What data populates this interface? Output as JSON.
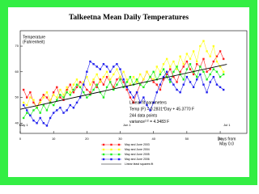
{
  "chart_data": {
    "type": "line",
    "title": "Talkeetna Mean Daily Temperatures",
    "y_label_lines": [
      "Temperature",
      "(Fahrenheit)"
    ],
    "x_label_lines": [
      "Days from",
      "May 0.0"
    ],
    "xlim": [
      0,
      68
    ],
    "xticks": [
      0,
      10,
      20,
      30,
      40,
      50,
      60
    ],
    "ylim": [
      36,
      76
    ],
    "yticks": [
      40,
      50,
      60,
      70
    ],
    "annotations": [
      {
        "text": "May 1",
        "x": 1
      },
      {
        "text": "Jun 1",
        "x": 32
      },
      {
        "text": "Jul 1",
        "x": 62
      }
    ],
    "fit_box": [
      "Linear fit parameters",
      "Temp (F) = 0.2831*Day + 45.3770 F",
      "244 data points"
    ],
    "variance_label": "variance",
    "variance_sup": "1/2",
    "variance_value": " = 4.3483 F",
    "x": [
      1,
      2,
      3,
      4,
      5,
      6,
      7,
      8,
      9,
      10,
      11,
      12,
      13,
      14,
      15,
      16,
      17,
      18,
      19,
      20,
      21,
      22,
      23,
      24,
      25,
      26,
      27,
      28,
      29,
      30,
      31,
      32,
      33,
      34,
      35,
      36,
      37,
      38,
      39,
      40,
      41,
      42,
      43,
      44,
      45,
      46,
      47,
      48,
      49,
      50,
      51,
      52,
      53,
      54,
      55,
      56,
      57,
      58,
      59,
      60,
      61
    ],
    "series": [
      {
        "name": "May and June 2003",
        "color": "#ff2020",
        "values": [
          53,
          50,
          52,
          48,
          46,
          49,
          51,
          50,
          48,
          52,
          54,
          50,
          49,
          53,
          55,
          52,
          54,
          56,
          55,
          53,
          52,
          56,
          54,
          57,
          55,
          58,
          56,
          54,
          57,
          58,
          56,
          53,
          50,
          48,
          52,
          55,
          57,
          60,
          58,
          56,
          55,
          53,
          57,
          59,
          61,
          58,
          56,
          60,
          62,
          64,
          61,
          59,
          63,
          62,
          65,
          60,
          61,
          64,
          66,
          68,
          65
        ]
      },
      {
        "name": "May and June 2004",
        "color": "#ffff20",
        "values": [
          48,
          47,
          50,
          49,
          46,
          48,
          50,
          52,
          49,
          51,
          50,
          53,
          51,
          54,
          52,
          55,
          57,
          54,
          56,
          58,
          55,
          57,
          59,
          56,
          58,
          60,
          57,
          59,
          61,
          58,
          60,
          57,
          55,
          58,
          56,
          59,
          57,
          60,
          58,
          57,
          62,
          60,
          63,
          65,
          62,
          64,
          61,
          66,
          63,
          67,
          65,
          68,
          64,
          70,
          72,
          68,
          66,
          70,
          64,
          62,
          60
        ]
      },
      {
        "name": "May and June 2005",
        "color": "#20ee20",
        "values": [
          42,
          44,
          43,
          45,
          46,
          44,
          47,
          45,
          48,
          47,
          49,
          51,
          50,
          52,
          51,
          53,
          55,
          54,
          52,
          50,
          51,
          53,
          55,
          52,
          50,
          54,
          56,
          53,
          55,
          57,
          54,
          56,
          58,
          55,
          57,
          55,
          54,
          56,
          58,
          60,
          57,
          59,
          61,
          58,
          56,
          60,
          62,
          59,
          57,
          61,
          63,
          60,
          58,
          62,
          60,
          57,
          59,
          61,
          60,
          58,
          59
        ]
      },
      {
        "name": "May and June 2006",
        "color": "#2020ee",
        "values": [
          47,
          45,
          43,
          41,
          40,
          42,
          40,
          39,
          42,
          44,
          45,
          46,
          44,
          45,
          47,
          46,
          48,
          50,
          55,
          60,
          64,
          63,
          62,
          61,
          63,
          62,
          60,
          62,
          63,
          61,
          57,
          54,
          52,
          50,
          52,
          48,
          50,
          47,
          45,
          48,
          52,
          55,
          58,
          60,
          57,
          55,
          53,
          52,
          55,
          58,
          56,
          54,
          57,
          59,
          55,
          52,
          56,
          58,
          55,
          54,
          53
        ]
      }
    ],
    "fit": {
      "name": "Linear least squares fit",
      "color": "#000000",
      "x": [
        0,
        62
      ],
      "values": [
        45.4,
        62.9
      ]
    }
  }
}
